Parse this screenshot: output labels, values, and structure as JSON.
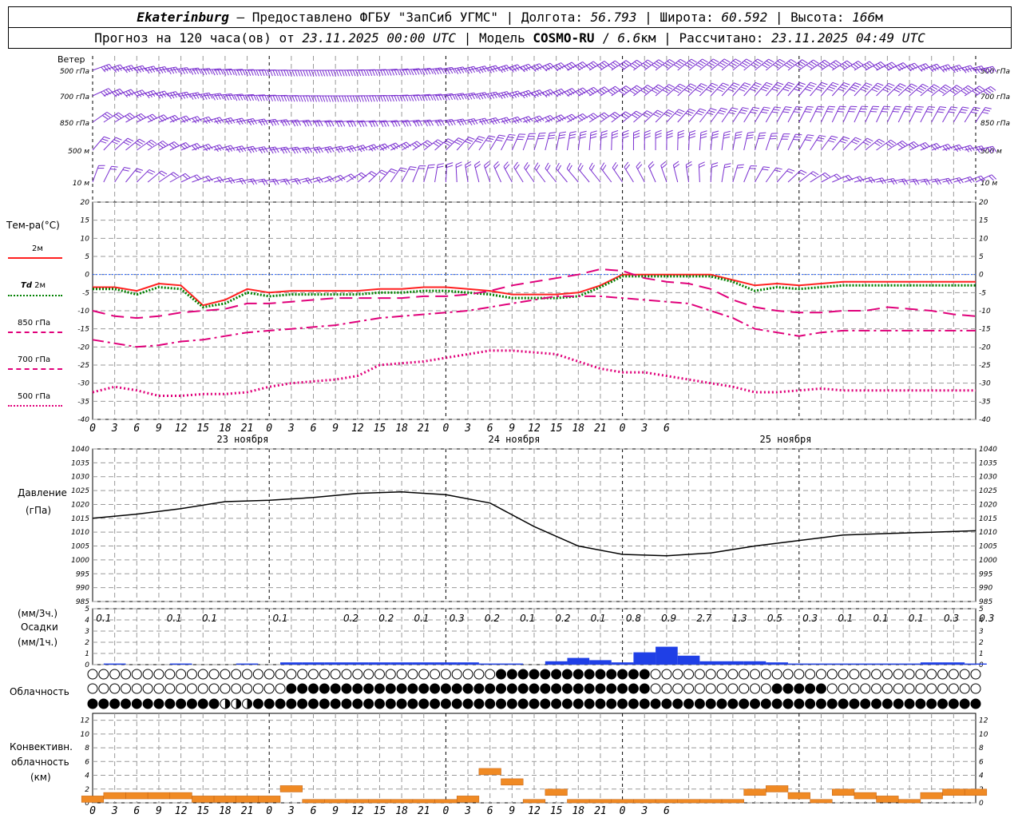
{
  "header": {
    "station": "Ekaterinburg",
    "provider": "Предоставлено ФГБУ \"ЗапСиб УГМС\"",
    "lon_label": "Долгота:",
    "lon_value": "56.793",
    "lat_label": "Широта:",
    "lat_value": "60.592",
    "alt_label": "Высота:",
    "alt_value": "166",
    "alt_unit": "м",
    "forecast_prefix": "Прогноз на 120 часа(ов) от",
    "forecast_start": "23.11.2025 00:00 UTC",
    "model_label": "Модель",
    "model_name": "COSMO-RU",
    "model_res": "6.6",
    "model_res_unit": "км",
    "computed_label": "Рассчитано:",
    "computed_value": "23.11.2025 04:49 UTC"
  },
  "wind_panel": {
    "title": "Ветер",
    "levels": [
      "500 гПа",
      "700 гПа",
      "850 гПа",
      "500 м",
      "10 м"
    ]
  },
  "temp_panel": {
    "title": "Тем-ра(°С)",
    "legend": [
      {
        "label": "2м",
        "label_prefix": "",
        "color": "#ff2020",
        "style": "solid"
      },
      {
        "label": "2м",
        "label_prefix": "Td",
        "color": "#008000",
        "style": "dotted"
      },
      {
        "label": "850 гПа",
        "label_prefix": "",
        "color": "#e0007a",
        "style": "longdash"
      },
      {
        "label": "700 гПа",
        "label_prefix": "",
        "color": "#e0007a",
        "style": "dashdot"
      },
      {
        "label": "500 гПа",
        "label_prefix": "",
        "color": "#e0007a",
        "style": "dot"
      }
    ],
    "ylim": [
      -40,
      20
    ],
    "yticks": [
      20,
      15,
      10,
      5,
      0,
      -5,
      -10,
      -15,
      -20,
      -25,
      -30,
      -35,
      -40
    ]
  },
  "time_axis": {
    "hour_labels": [
      "0",
      "3",
      "6",
      "9",
      "12",
      "15",
      "18",
      "21",
      "0",
      "3",
      "6",
      "9",
      "12",
      "15",
      "18",
      "21",
      "0",
      "3",
      "6",
      "9",
      "12",
      "15",
      "18",
      "21",
      "0",
      "3",
      "6"
    ],
    "day_labels": [
      "23 ноября",
      "24 ноября",
      "25 ноября"
    ]
  },
  "pressure_panel": {
    "title": "Давление",
    "unit": "(гПа)",
    "ylim": [
      985,
      1040
    ],
    "yticks": [
      1040,
      1035,
      1030,
      1025,
      1020,
      1015,
      1010,
      1005,
      1000,
      995,
      990,
      985
    ]
  },
  "precip_panel": {
    "title": "Осадки",
    "unit_3h": "(мм/3ч.)",
    "unit_1h": "(мм/1ч.)",
    "ylim": [
      0,
      5
    ],
    "yticks": [
      5,
      4,
      3,
      2,
      1,
      0
    ],
    "three_hour_totals": [
      "0.1",
      "",
      "0.1",
      "0.1",
      "",
      "0.1",
      "",
      "0.2",
      "0.2",
      "0.1",
      "0.3",
      "0.2",
      "0.1",
      "0.2",
      "0.1",
      "0.8",
      "0.9",
      "2.7",
      "1.3",
      "0.5",
      "0.3",
      "0.1",
      "0.1",
      "0.1",
      "0.3",
      "0.3"
    ]
  },
  "cloud_panel": {
    "title": "Облачность"
  },
  "conv_panel": {
    "title_line1": "Конвективн.",
    "title_line2": "облачность",
    "unit": "(км)",
    "ylim": [
      0,
      13
    ],
    "yticks": [
      12,
      10,
      8,
      6,
      4,
      2,
      0
    ]
  },
  "colors": {
    "wind": "#7a2fd0",
    "t2m": "#ff2020",
    "td2m": "#008000",
    "upper": "#e0007a",
    "precip": "#1f3fe6",
    "conv": "#f08a24",
    "pressure": "#000000",
    "zero_line": "#2060ff"
  },
  "chart_data": [
    {
      "type": "line",
      "title": "Тем-ра(°С)",
      "x_hours": [
        0,
        3,
        6,
        9,
        12,
        15,
        18,
        21,
        24,
        27,
        30,
        33,
        36,
        39,
        42,
        45,
        48,
        51,
        54,
        57,
        60,
        63,
        66,
        69,
        72,
        75,
        78,
        81,
        84,
        87,
        90,
        93,
        96,
        99,
        102,
        105,
        108,
        111,
        114,
        117,
        120
      ],
      "series": [
        {
          "name": "2м",
          "values": [
            -3.5,
            -3.5,
            -4.5,
            -2.5,
            -3,
            -8.5,
            -7,
            -4,
            -5,
            -4.5,
            -4.5,
            -4.5,
            -4.5,
            -4,
            -4,
            -3.5,
            -3.5,
            -4,
            -4.5,
            -5.5,
            -5.5,
            -5.5,
            -5,
            -3,
            0,
            0,
            0,
            0,
            0,
            -1.5,
            -3,
            -2.5,
            -3,
            -2.5,
            -2,
            -2,
            -2,
            -2,
            -2,
            -2,
            -2
          ]
        },
        {
          "name": "Td 2м",
          "values": [
            -4,
            -4,
            -5.5,
            -3.5,
            -4,
            -9,
            -8,
            -5,
            -6,
            -5.5,
            -5.5,
            -5.5,
            -5.5,
            -5,
            -5,
            -4.5,
            -4.5,
            -5,
            -5.5,
            -6.5,
            -6.5,
            -6.5,
            -6,
            -3.5,
            -0.5,
            -0.5,
            -0.5,
            -0.5,
            -0.5,
            -2,
            -4.5,
            -3.5,
            -4,
            -3.5,
            -3,
            -3,
            -3,
            -3,
            -3,
            -3,
            -3
          ]
        },
        {
          "name": "850 гПа",
          "values": [
            -10,
            -11.5,
            -12,
            -11.5,
            -10.5,
            -10,
            -9.5,
            -8,
            -8,
            -7.5,
            -7,
            -6.5,
            -6.5,
            -6.5,
            -6.5,
            -6,
            -6,
            -5.5,
            -4.5,
            -3,
            -2,
            -1,
            0,
            1.5,
            1,
            -1,
            -2,
            -2.5,
            -4,
            -7,
            -9,
            -10,
            -10.5,
            -10.5,
            -10,
            -10,
            -9,
            -9.5,
            -10,
            -11,
            -11.5
          ]
        },
        {
          "name": "700 гПа",
          "values": [
            -18,
            -19,
            -20,
            -19.5,
            -18.5,
            -18,
            -17,
            -16,
            -15.5,
            -15,
            -14.5,
            -14,
            -13,
            -12,
            -11.5,
            -11,
            -10.5,
            -10,
            -9,
            -8,
            -7,
            -6,
            -6,
            -6,
            -6.5,
            -7,
            -7.5,
            -8,
            -10,
            -12,
            -15,
            -16,
            -17,
            -16,
            -15.5,
            -15.5,
            -15.5,
            -15.5,
            -15.5,
            -15.5,
            -15.5
          ]
        },
        {
          "name": "500 гПа",
          "values": [
            -32.5,
            -31,
            -32,
            -33.5,
            -33.5,
            -33,
            -33,
            -32.5,
            -31,
            -30,
            -29.5,
            -29,
            -28,
            -25,
            -24.5,
            -24,
            -23,
            -22,
            -21,
            -21,
            -21.5,
            -22,
            -24,
            -26,
            -27,
            -27,
            -28,
            -29,
            -30,
            -31,
            -32.5,
            -32.5,
            -32,
            -31.5,
            -32,
            -32,
            -32,
            -32,
            -32,
            -32,
            -32
          ]
        }
      ],
      "ylim": [
        -40,
        20
      ]
    },
    {
      "type": "line",
      "title": "Давление",
      "x_hours": [
        0,
        6,
        12,
        18,
        24,
        30,
        36,
        42,
        48,
        54,
        60,
        66,
        72,
        78,
        84,
        90,
        96,
        102,
        108,
        114,
        120
      ],
      "series": [
        {
          "name": "",
          "values": [
            1015,
            1016.5,
            1018.5,
            1021,
            1021.5,
            1022.5,
            1024,
            1024.5,
            1023.5,
            1020.5,
            1012,
            1005,
            1002,
            1001.5,
            1002.5,
            1005,
            1007,
            1009,
            1009.5,
            1010,
            1010.5
          ]
        }
      ],
      "ylim": [
        985,
        1040
      ]
    },
    {
      "type": "bar",
      "title": "Осадки",
      "x_hours": [
        0,
        3,
        6,
        9,
        12,
        15,
        18,
        21,
        24,
        27,
        30,
        33,
        36,
        39,
        42,
        45,
        48,
        51,
        54,
        57,
        60,
        63,
        66,
        69,
        72,
        75,
        78,
        81,
        84,
        87,
        90,
        93,
        96,
        99,
        102,
        105,
        108,
        111,
        114,
        117,
        120
      ],
      "values": [
        0,
        0.1,
        0,
        0,
        0.1,
        0,
        0,
        0.1,
        0,
        0.2,
        0.2,
        0.2,
        0.2,
        0.2,
        0.2,
        0.2,
        0.2,
        0.2,
        0.1,
        0.1,
        0,
        0.3,
        0.6,
        0.4,
        0.2,
        1.1,
        1.6,
        0.8,
        0.3,
        0.3,
        0.3,
        0.2,
        0.1,
        0.1,
        0.1,
        0.1,
        0.1,
        0.1,
        0.2,
        0.2,
        0.1
      ],
      "ylim": [
        0,
        5
      ]
    },
    {
      "type": "bar",
      "title": "Конвективн. облачность",
      "x_hours": [
        0,
        3,
        6,
        9,
        12,
        15,
        18,
        21,
        24,
        27,
        30,
        33,
        36,
        39,
        42,
        45,
        48,
        51,
        54,
        57,
        60,
        63,
        66,
        69,
        72,
        75,
        78,
        81,
        84,
        87,
        90,
        93,
        96,
        99,
        102,
        105,
        108,
        111,
        114,
        117,
        120
      ],
      "values": [
        1,
        1.5,
        1.5,
        1.5,
        1.5,
        1,
        1,
        1,
        1,
        2.5,
        0.5,
        0.5,
        0.5,
        0.5,
        0.5,
        0.5,
        0.5,
        1,
        5,
        3.5,
        0.5,
        2,
        0.5,
        0.5,
        0.5,
        0.5,
        0.5,
        0.5,
        0.5,
        0.5,
        2,
        2.5,
        1.5,
        0.5,
        2,
        1.5,
        1,
        0.5,
        1.5,
        2,
        2
      ],
      "ylim": [
        0,
        13
      ]
    }
  ]
}
